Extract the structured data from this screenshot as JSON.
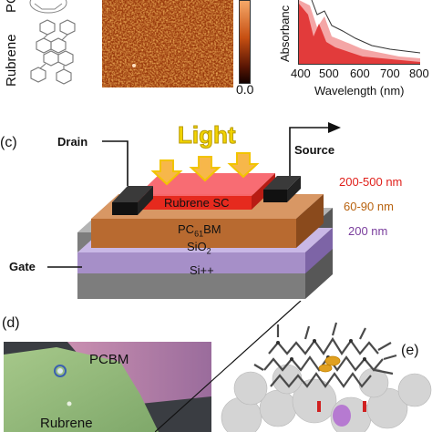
{
  "top_row": {
    "molecule_labels": [
      "PC",
      "Rubrene"
    ],
    "afm_colorbar_bottom": "0.0",
    "absorbance_ylabel": "Absorbanc",
    "absorbance_xlabel": "Wavelength (nm)",
    "absorbance_xticks": [
      "400",
      "500",
      "600",
      "700",
      "800"
    ]
  },
  "panel_c": {
    "letter": "(c)",
    "light_label": "Light",
    "drain_label": "Drain",
    "source_label": "Source",
    "gate_label": "Gate",
    "layers": {
      "rubrene": "Rubrene SC",
      "pcbm_prefix": "PC",
      "pcbm_sub": "61",
      "pcbm_suffix": "BM",
      "sio2_prefix": "SiO",
      "sio2_sub": "2",
      "si": "Si++"
    },
    "thicknesses": [
      {
        "text": "200-500 nm",
        "color": "#e0201b"
      },
      {
        "text": "60-90 nm",
        "color": "#b8620e"
      },
      {
        "text": "200 nm",
        "color": "#7a3e9d"
      }
    ]
  },
  "panel_d": {
    "letter": "(d)",
    "pcbm_label": "PCBM",
    "rubrene_label": "Rubrene"
  },
  "panel_e": {
    "letter": "(e)"
  },
  "colors": {
    "rubrene_red": "#e62a1e",
    "pcbm_orange": "#c0692a",
    "sio2_purple": "#a68fc8",
    "si_gray": "#7d7d7d",
    "light_yellow": "#f2c400"
  }
}
